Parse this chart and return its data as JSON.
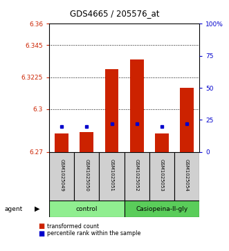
{
  "title": "GDS4665 / 205576_at",
  "samples": [
    "GSM1025049",
    "GSM1025050",
    "GSM1025051",
    "GSM1025052",
    "GSM1025053",
    "GSM1025054"
  ],
  "bar_values": [
    6.283,
    6.284,
    6.328,
    6.335,
    6.283,
    6.315
  ],
  "bar_base": 6.27,
  "percentile_values": [
    20,
    20,
    22,
    22,
    20,
    22
  ],
  "ylim_left": [
    6.27,
    6.36
  ],
  "yticks_left": [
    6.27,
    6.3,
    6.3225,
    6.345,
    6.36
  ],
  "ytick_labels_left": [
    "6.27",
    "6.3",
    "6.3225",
    "6.345",
    "6.36"
  ],
  "ylim_right": [
    0,
    100
  ],
  "yticks_right": [
    0,
    25,
    50,
    75,
    100
  ],
  "ytick_labels_right": [
    "0",
    "25",
    "50",
    "75",
    "100%"
  ],
  "bar_color": "#cc2200",
  "dot_color": "#0000cc",
  "grid_ticks": [
    6.3,
    6.3225,
    6.345
  ],
  "bar_width": 0.55,
  "control_color": "#90EE90",
  "casio_color": "#5ACD5A",
  "gray_color": "#d0d0d0"
}
